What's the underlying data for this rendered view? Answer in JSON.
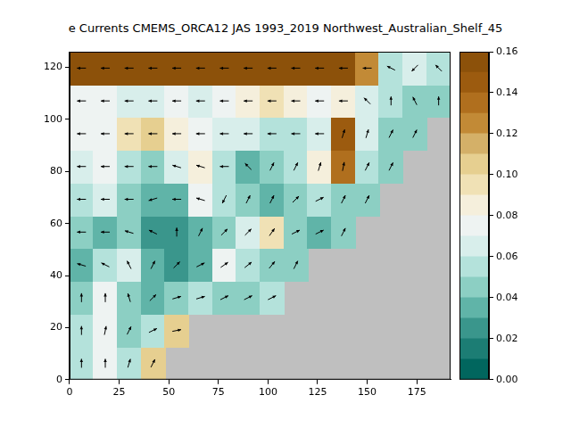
{
  "chart_data": {
    "type": "heatmap",
    "title": "e Currents CMEMS_ORCA12 JAS 1993_2019 Northwest_Australian_Shelf_45",
    "xlim": [
      0,
      192
    ],
    "xticks": [
      0,
      25,
      50,
      75,
      100,
      125,
      150,
      175
    ],
    "ylim": [
      0,
      126
    ],
    "yticks": [
      0,
      20,
      40,
      60,
      80,
      100,
      120
    ],
    "grid": false,
    "cells": {
      "x": [
        6,
        18,
        30,
        42,
        54,
        66,
        78,
        90,
        102,
        114,
        126,
        138,
        150,
        162,
        174,
        186
      ],
      "y": [
        6.3,
        18.9,
        31.5,
        44.1,
        56.7,
        69.3,
        81.9,
        94.5,
        107.1,
        119.7
      ],
      "values": [
        [
          0.05,
          0.07,
          0.05,
          0.1,
          null,
          null,
          null,
          null,
          null,
          null,
          null,
          null,
          null,
          null,
          null,
          null
        ],
        [
          0.05,
          0.07,
          0.04,
          0.05,
          0.1,
          null,
          null,
          null,
          null,
          null,
          null,
          null,
          null,
          null,
          null,
          null
        ],
        [
          0.04,
          0.07,
          0.04,
          0.03,
          0.04,
          0.05,
          0.04,
          0.04,
          0.05,
          null,
          null,
          null,
          null,
          null,
          null,
          null
        ],
        [
          0.03,
          0.05,
          0.06,
          0.03,
          0.02,
          0.03,
          0.07,
          0.05,
          0.04,
          0.04,
          null,
          null,
          null,
          null,
          null,
          null
        ],
        [
          0.04,
          0.03,
          0.04,
          0.02,
          0.02,
          0.03,
          0.04,
          0.06,
          0.09,
          0.04,
          0.03,
          0.04,
          null,
          null,
          null,
          null
        ],
        [
          0.05,
          0.06,
          0.04,
          0.03,
          0.03,
          0.07,
          0.05,
          0.04,
          0.03,
          0.04,
          0.05,
          0.04,
          0.04,
          null,
          null,
          null
        ],
        [
          0.06,
          0.07,
          0.05,
          0.04,
          0.06,
          0.08,
          0.05,
          0.03,
          0.04,
          0.05,
          0.08,
          0.13,
          0.05,
          0.04,
          null,
          null
        ],
        [
          0.07,
          0.07,
          0.09,
          0.1,
          0.08,
          0.07,
          0.06,
          0.06,
          0.05,
          0.05,
          0.06,
          0.14,
          0.06,
          0.04,
          0.04,
          null
        ],
        [
          0.07,
          0.07,
          0.06,
          0.06,
          0.07,
          0.06,
          0.07,
          0.08,
          0.09,
          0.08,
          0.07,
          0.08,
          0.06,
          0.05,
          0.04,
          0.04
        ],
        [
          0.15,
          0.15,
          0.16,
          0.16,
          0.16,
          0.16,
          0.16,
          0.16,
          0.16,
          0.16,
          0.15,
          0.15,
          0.12,
          0.05,
          0.06,
          0.05
        ]
      ]
    },
    "arrows": {
      "u": [
        [
          0,
          0,
          0.3,
          0.5,
          null,
          null,
          null,
          null,
          null,
          null,
          null,
          null,
          null,
          null,
          null,
          null
        ],
        [
          0,
          0.2,
          0.5,
          1,
          1,
          null,
          null,
          null,
          null,
          null,
          null,
          null,
          null,
          null,
          null,
          null
        ],
        [
          0,
          0,
          -0.3,
          0.5,
          1,
          1,
          1,
          1,
          1,
          null,
          null,
          null,
          null,
          null,
          null,
          null
        ],
        [
          -1,
          -1,
          -0.5,
          0.5,
          1,
          1,
          1,
          1,
          0.8,
          0.5,
          null,
          null,
          null,
          null,
          null,
          null
        ],
        [
          -1,
          -1,
          -1,
          -1,
          0,
          0.5,
          1,
          1,
          0.7,
          1,
          1,
          0.5,
          null,
          null,
          null,
          null
        ],
        [
          -1,
          -1,
          -1,
          -1,
          -1,
          -1,
          -0.5,
          0.5,
          0.5,
          1,
          1,
          0.5,
          0.5,
          null,
          null,
          null
        ],
        [
          -1,
          -1,
          -1,
          -1,
          -1,
          -1,
          -1,
          -0.5,
          0.5,
          0.5,
          0.3,
          0.2,
          0.5,
          0.5,
          null,
          null
        ],
        [
          -1,
          -1,
          -1,
          -1,
          -1,
          -1,
          -1,
          -1,
          -1,
          -1,
          -1,
          0.3,
          0.3,
          0.5,
          0.5,
          null
        ],
        [
          -1,
          -1,
          -1,
          -1,
          -1,
          -1,
          -1,
          -1,
          -1,
          -1,
          -1,
          -1,
          -0.5,
          0,
          -0.5,
          0
        ],
        [
          -1,
          -1,
          -1,
          -1,
          -1,
          -1,
          -1,
          -1,
          -1,
          -1,
          -1,
          -1,
          -1,
          -1,
          -0.5,
          -0.5
        ]
      ],
      "v": [
        [
          1,
          1,
          1,
          1,
          null,
          null,
          null,
          null,
          null,
          null,
          null,
          null,
          null,
          null,
          null,
          null
        ],
        [
          1,
          1,
          1,
          0.5,
          0.2,
          null,
          null,
          null,
          null,
          null,
          null,
          null,
          null,
          null,
          null,
          null
        ],
        [
          1,
          1,
          1,
          0.5,
          0.3,
          0.3,
          0.5,
          0.5,
          0.5,
          null,
          null,
          null,
          null,
          null,
          null,
          null
        ],
        [
          0.3,
          0.5,
          1,
          1,
          1,
          0.5,
          0.7,
          0.8,
          1,
          1,
          null,
          null,
          null,
          null,
          null,
          null
        ],
        [
          0,
          0,
          0.3,
          0.5,
          1,
          1,
          1,
          1,
          1,
          0.5,
          0.5,
          1,
          null,
          null,
          null,
          null
        ],
        [
          0,
          0,
          0,
          -0.3,
          0,
          0.3,
          -1,
          1,
          1,
          1,
          0.5,
          1,
          1,
          null,
          null,
          null
        ],
        [
          0,
          0,
          0,
          0,
          0.3,
          0.3,
          0,
          0.5,
          1,
          1,
          1,
          1,
          1,
          1,
          null,
          null
        ],
        [
          0,
          0,
          0,
          0,
          0,
          0,
          0,
          0,
          0,
          0,
          0,
          1,
          1,
          1,
          1,
          null
        ],
        [
          0,
          0,
          0,
          0,
          0,
          0,
          0,
          0,
          0,
          0,
          0,
          0,
          0.5,
          1,
          1,
          1
        ],
        [
          0,
          0,
          0,
          0,
          0,
          0,
          0,
          0,
          0,
          0,
          0,
          0,
          0,
          0.5,
          -0.5,
          0.5
        ]
      ]
    },
    "colorbar": {
      "lim": [
        0,
        0.16
      ],
      "ticks": [
        {
          "value": 0,
          "label": "0.00"
        },
        {
          "value": 0.02,
          "label": "0.02"
        },
        {
          "value": 0.04,
          "label": "0.04"
        },
        {
          "value": 0.06,
          "label": "0.06"
        },
        {
          "value": 0.08,
          "label": "0.08"
        },
        {
          "value": 0.1,
          "label": "0.10"
        },
        {
          "value": 0.12,
          "label": "0.12"
        },
        {
          "value": 0.14,
          "label": "0.14"
        },
        {
          "value": 0.16,
          "label": "0.16"
        }
      ]
    }
  }
}
